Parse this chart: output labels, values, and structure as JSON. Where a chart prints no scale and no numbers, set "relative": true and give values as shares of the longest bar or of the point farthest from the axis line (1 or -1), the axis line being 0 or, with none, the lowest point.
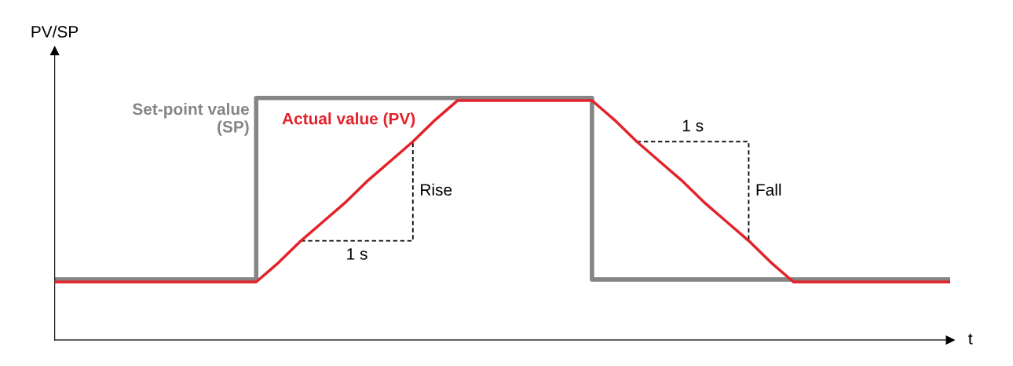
{
  "chart_data": {
    "type": "line",
    "ylabel": "PV/SP",
    "xlabel": "t",
    "relative": true,
    "tick_labels": false,
    "categories": [
      null,
      null,
      null,
      null,
      null,
      null,
      null,
      null,
      null,
      null,
      null,
      null,
      null,
      null,
      null,
      null,
      null,
      null,
      null,
      null,
      null,
      null,
      null,
      null,
      null,
      null,
      null,
      null,
      null,
      null,
      null,
      null,
      null,
      null,
      null,
      null,
      null,
      null,
      null,
      null,
      null
    ],
    "series": [
      {
        "name": "Set-point value\n(SP)",
        "type": "step",
        "color": "#858585",
        "values": [
          0.25,
          0.25,
          0.25,
          0.25,
          0.25,
          0.25,
          0.25,
          0.25,
          0.25,
          1,
          1,
          1,
          1,
          1,
          1,
          1,
          1,
          1,
          1,
          1,
          1,
          1,
          1,
          1,
          0.25,
          0.25,
          0.25,
          0.25,
          0.25,
          0.25,
          0.25,
          0.25,
          0.25,
          0.25,
          0.25,
          0.25,
          0.25,
          0.25,
          0.25,
          0.25,
          0.25
        ]
      },
      {
        "name": "Actual value (PV)",
        "type": "line",
        "color": "#e3232a",
        "values": [
          0.24,
          0.24,
          0.24,
          0.24,
          0.24,
          0.24,
          0.24,
          0.24,
          0.24,
          0.24,
          0.32,
          0.41,
          0.49,
          0.57,
          0.66,
          0.74,
          0.82,
          0.91,
          0.99,
          0.99,
          0.99,
          0.99,
          0.99,
          0.99,
          0.99,
          0.91,
          0.82,
          0.74,
          0.66,
          0.57,
          0.49,
          0.41,
          0.32,
          0.24,
          0.24,
          0.24,
          0.24,
          0.24,
          0.24,
          0.24,
          0.24
        ]
      }
    ],
    "annotations": [
      "1 s",
      "Rise",
      "1 s",
      "Fall"
    ]
  }
}
